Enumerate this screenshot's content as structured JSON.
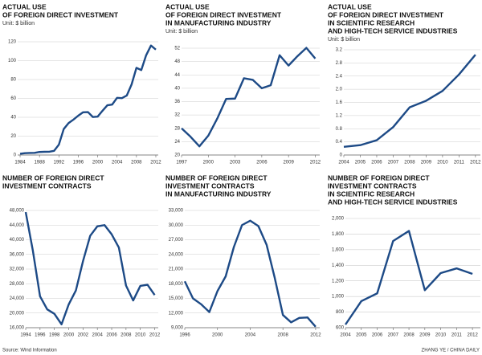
{
  "chart_data": [
    {
      "type": "line",
      "title_lines": [
        "ACTUAL USE",
        "OF FOREIGN DIRECT INVESTMENT"
      ],
      "subtitle": "Unit: $ billion",
      "color": "#1d4a86",
      "grid": true,
      "x": [
        1984,
        1985,
        1986,
        1987,
        1988,
        1989,
        1990,
        1991,
        1992,
        1993,
        1994,
        1995,
        1996,
        1997,
        1998,
        1999,
        2000,
        2001,
        2002,
        2003,
        2004,
        2005,
        2006,
        2007,
        2008,
        2009,
        2010,
        2011,
        2012
      ],
      "values": [
        1.3,
        2,
        2.2,
        2.3,
        3.2,
        3.4,
        3.5,
        4.4,
        11,
        27.5,
        33.8,
        37.5,
        41.7,
        45.3,
        45.5,
        40.3,
        40.7,
        46.9,
        52.7,
        53.5,
        60.6,
        60.3,
        63,
        74.8,
        92.4,
        90,
        105.7,
        116,
        111.7
      ],
      "xlim": [
        1983.5,
        2012.5
      ],
      "ylim": [
        0,
        120
      ],
      "xticks": [
        1984,
        1988,
        1992,
        1996,
        2000,
        2004,
        2008,
        2012
      ],
      "yticks": [
        0,
        20,
        40,
        60,
        80,
        100,
        120
      ]
    },
    {
      "type": "line",
      "title_lines": [
        "ACTUAL USE",
        "OF FOREIGN DIRECT INVESTMENT",
        "IN MANUFACTURING INDUSTRY"
      ],
      "subtitle": "Unit: $ billion",
      "color": "#1d4a86",
      "grid": true,
      "x": [
        1997,
        1998,
        1999,
        2000,
        2001,
        2002,
        2003,
        2004,
        2005,
        2006,
        2007,
        2008,
        2009,
        2010,
        2011,
        2012
      ],
      "values": [
        28,
        25.5,
        22.6,
        25.8,
        30.9,
        36.8,
        36.9,
        43,
        42.5,
        40,
        40.9,
        49.9,
        46.8,
        49.6,
        52.1,
        48.9
      ],
      "xlim": [
        1997,
        2012.5
      ],
      "ylim": [
        20,
        52
      ],
      "xticks": [
        1997,
        2000,
        2003,
        2006,
        2009,
        2012
      ],
      "yticks": [
        20,
        24,
        28,
        32,
        36,
        40,
        44,
        48,
        52
      ]
    },
    {
      "type": "line",
      "title_lines": [
        "ACTUAL USE",
        "OF FOREIGN DIRECT INVESTMENT",
        "IN SCIENTIFIC RESEARCH",
        "AND HIGH-TECH SERVICE INDUSTRIES"
      ],
      "subtitle": "Unit: $ billion",
      "color": "#1d4a86",
      "grid": true,
      "x": [
        2004,
        2005,
        2006,
        2007,
        2008,
        2009,
        2010,
        2011,
        2012
      ],
      "values": [
        0.25,
        0.3,
        0.45,
        0.85,
        1.45,
        1.65,
        1.95,
        2.45,
        3.05
      ],
      "xlim": [
        2004,
        2012.3
      ],
      "ylim": [
        0,
        3.2
      ],
      "xticks": [
        2004,
        2005,
        2006,
        2007,
        2008,
        2009,
        2010,
        2011,
        2012
      ],
      "yticks": [
        0,
        0.4,
        0.8,
        1.2,
        1.6,
        {
          "value": 2,
          "label": "2.0"
        },
        2.4,
        2.8,
        3.2
      ]
    },
    {
      "type": "line",
      "title_lines": [
        "NUMBER OF FOREIGN DIRECT",
        "INVESTMENT CONTRACTS"
      ],
      "color": "#1d4a86",
      "grid": true,
      "x": [
        1994,
        1995,
        1996,
        1997,
        1998,
        1999,
        2000,
        2001,
        2002,
        2003,
        2004,
        2005,
        2006,
        2007,
        2008,
        2009,
        2010,
        2011,
        2012
      ],
      "values": [
        47549,
        37011,
        24556,
        21001,
        19799,
        16918,
        22347,
        26140,
        34171,
        41081,
        43664,
        44001,
        41473,
        37871,
        27514,
        23435,
        27406,
        27712,
        24925
      ],
      "xlim": [
        1994,
        2012.5
      ],
      "ylim": [
        16000,
        48000
      ],
      "xticks": [
        1994,
        1996,
        1998,
        2000,
        2002,
        2004,
        2006,
        2008,
        2010,
        2012
      ],
      "yticks": [
        {
          "value": 16000,
          "label": "16,000"
        },
        {
          "value": 20000,
          "label": "20,000"
        },
        {
          "value": 24000,
          "label": "24,000"
        },
        {
          "value": 28000,
          "label": "28,000"
        },
        {
          "value": 32000,
          "label": "32,000"
        },
        {
          "value": 36000,
          "label": "36,000"
        },
        {
          "value": 40000,
          "label": "40,000"
        },
        {
          "value": 44000,
          "label": "44,000"
        },
        {
          "value": 48000,
          "label": "48,000"
        }
      ]
    },
    {
      "type": "line",
      "title_lines": [
        "NUMBER OF FOREIGN DIRECT",
        "INVESTMENT CONTRACTS",
        "IN MANUFACTURING INDUSTRY"
      ],
      "color": "#1d4a86",
      "grid": true,
      "x": [
        1996,
        1997,
        1998,
        1999,
        2000,
        2001,
        2002,
        2003,
        2004,
        2005,
        2006,
        2007,
        2008,
        2009,
        2010,
        2011,
        2012
      ],
      "values": [
        18500,
        15000,
        13800,
        12200,
        16500,
        19500,
        25500,
        30000,
        30900,
        29800,
        26000,
        19200,
        11600,
        10100,
        11000,
        11100,
        9200
      ],
      "xlim": [
        1996,
        2012.5
      ],
      "ylim": [
        9000,
        33000
      ],
      "xticks": [
        1996,
        2000,
        2004,
        2008,
        2012
      ],
      "yticks": [
        {
          "value": 9000,
          "label": "9,000"
        },
        {
          "value": 12000,
          "label": "12,000"
        },
        {
          "value": 15000,
          "label": "15,000"
        },
        {
          "value": 18000,
          "label": "18,000"
        },
        {
          "value": 21000,
          "label": "21,000"
        },
        {
          "value": 24000,
          "label": "24,000"
        },
        {
          "value": 27000,
          "label": "27,000"
        },
        {
          "value": 30000,
          "label": "30,000"
        },
        {
          "value": 33000,
          "label": "33,000"
        }
      ]
    },
    {
      "type": "line",
      "title_lines": [
        "NUMBER OF FOREIGN DIRECT",
        "INVESTMENT CONTRACTS",
        "IN SCIENTIFIC RESEARCH",
        "AND HIGH-TECH SERVICE INDUSTRIES"
      ],
      "color": "#1d4a86",
      "grid": true,
      "x": [
        2004,
        2005,
        2006,
        2007,
        2008,
        2009,
        2010,
        2011,
        2012
      ],
      "values": [
        640,
        940,
        1040,
        1710,
        1840,
        1080,
        1300,
        1360,
        1290
      ],
      "xlim": [
        2004,
        2012.5
      ],
      "ylim": [
        600,
        2000
      ],
      "xticks": [
        2004,
        2005,
        2006,
        2007,
        2008,
        2009,
        2010,
        2011,
        2012
      ],
      "yticks": [
        600,
        800,
        {
          "value": 1000,
          "label": "1,000"
        },
        {
          "value": 1200,
          "label": "1,200"
        },
        {
          "value": 1400,
          "label": "1,400"
        },
        {
          "value": 1600,
          "label": "1,600"
        },
        {
          "value": 1800,
          "label": "1,800"
        },
        {
          "value": 2000,
          "label": "2,000"
        }
      ]
    }
  ],
  "source": "Source: Wind Information",
  "credit": "ZHANG YE / CHINA DAILY"
}
